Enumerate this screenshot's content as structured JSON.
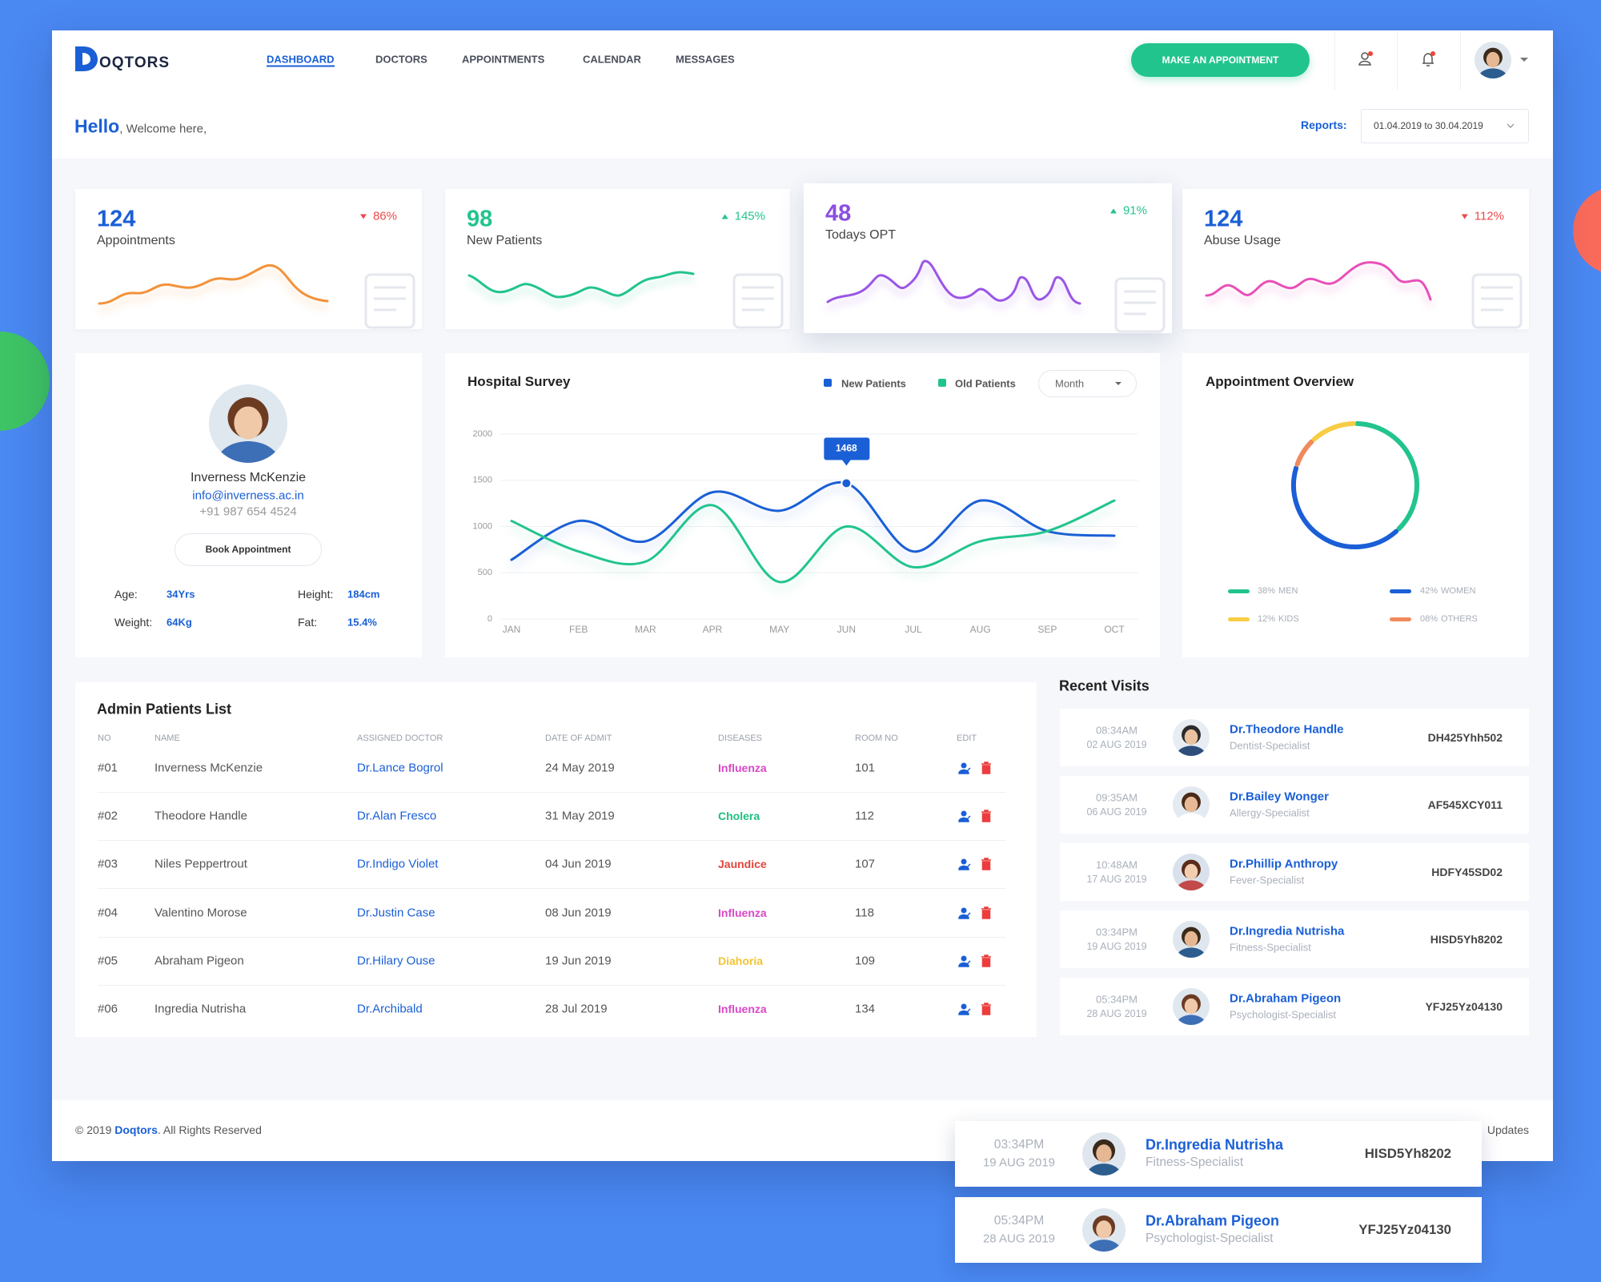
{
  "header": {
    "logo": "OQTORS",
    "nav": [
      "DASHBOARD",
      "DOCTORS",
      "APPOINTMENTS",
      "CALENDAR",
      "MESSAGES"
    ],
    "active_nav": 0,
    "button": "MAKE AN APPOINTMENT"
  },
  "greeting": {
    "hello": "Hello",
    "welcome": ", Welcome here,",
    "reports_label": "Reports:",
    "reports_range": "01.04.2019 to 30.04.2019"
  },
  "stats": [
    {
      "value": 124,
      "label": "Appointments",
      "change": "86%",
      "trend": "down",
      "color": "#1a5fd6",
      "line_color": "#f3923a"
    },
    {
      "value": 98,
      "label": "New Patients",
      "change": "145%",
      "trend": "up",
      "color": "#22c48e",
      "line_color": "#22c48e"
    },
    {
      "value": 48,
      "label": "Todays OPT",
      "change": "91%",
      "trend": "up",
      "color": "#8a4fe0",
      "line_color": "#9b55e6"
    },
    {
      "value": 124,
      "label": "Abuse Usage",
      "change": "112%",
      "trend": "down",
      "color": "#1a5fd6",
      "line_color": "#e84fb8"
    }
  ],
  "profile": {
    "name": "Inverness McKenzie",
    "email": "info@inverness.ac.in",
    "phone": "+91 987 654 4524",
    "button": "Book Appointment",
    "details": [
      {
        "label": "Age:",
        "value": "34Yrs"
      },
      {
        "label": "Height:",
        "value": "184cm"
      },
      {
        "label": "Weight:",
        "value": "64Kg"
      },
      {
        "label": "Fat:",
        "value": "15.4%"
      }
    ]
  },
  "chart_data": [
    {
      "type": "line",
      "title": "Hospital Survey",
      "control": "Month",
      "categories": [
        "JAN",
        "FEB",
        "MAR",
        "APR",
        "MAY",
        "JUN",
        "JUL",
        "AUG",
        "SEP",
        "OCT"
      ],
      "series": [
        {
          "name": "New Patients",
          "color": "#1a5fd6",
          "values": [
            640,
            1060,
            840,
            1370,
            1170,
            1468,
            730,
            1280,
            950,
            900
          ]
        },
        {
          "name": "Old Patients",
          "color": "#22c48e",
          "values": [
            1060,
            730,
            620,
            1230,
            400,
            1000,
            560,
            840,
            950,
            1280
          ]
        }
      ],
      "ylim": [
        0,
        2000
      ],
      "yticks": [
        0,
        500,
        1000,
        1500,
        2000
      ],
      "grid": true,
      "highlight": {
        "series": 0,
        "index": 5
      }
    },
    {
      "type": "pie",
      "title": "Appointment Overview",
      "donut": true,
      "categories": [
        "MEN",
        "WOMEN",
        "KIDS",
        "OTHERS"
      ],
      "values": [
        38,
        42,
        12,
        8
      ],
      "value_labels": [
        "38%",
        "42%",
        "12%",
        "08%"
      ],
      "colors": [
        "#22c48e",
        "#1a5fd6",
        "#f7cd45",
        "#f08a5d"
      ]
    }
  ],
  "patients": {
    "title": "Admin Patients List",
    "columns": [
      "NO",
      "NAME",
      "ASSIGNED DOCTOR",
      "DATE OF ADMIT",
      "DISEASES",
      "ROOM NO",
      "EDIT"
    ],
    "rows": [
      {
        "no": "#01",
        "name": "Inverness McKenzie",
        "doctor": "Dr.Lance Bogrol",
        "date": "24 May 2019",
        "disease": "Influenza",
        "disease_color": "#d848c9",
        "room": 101
      },
      {
        "no": "#02",
        "name": "Theodore Handle",
        "doctor": "Dr.Alan Fresco",
        "date": "31 May 2019",
        "disease": "Cholera",
        "disease_color": "#1fbf7e",
        "room": 112
      },
      {
        "no": "#03",
        "name": "Niles Peppertrout",
        "doctor": "Dr.Indigo Violet",
        "date": "04 Jun 2019",
        "disease": "Jaundice",
        "disease_color": "#e2453b",
        "room": 107
      },
      {
        "no": "#04",
        "name": "Valentino Morose",
        "doctor": "Dr.Justin Case",
        "date": "08 Jun 2019",
        "disease": "Influenza",
        "disease_color": "#d848c9",
        "room": 118
      },
      {
        "no": "#05",
        "name": "Abraham Pigeon",
        "doctor": "Dr.Hilary Ouse",
        "date": "19 Jun 2019",
        "disease": "Diahoria",
        "disease_color": "#f2c433",
        "room": 109
      },
      {
        "no": "#06",
        "name": "Ingredia Nutrisha",
        "doctor": "Dr.Archibald",
        "date": "28 Jul 2019",
        "disease": "Influenza",
        "disease_color": "#d848c9",
        "room": 134
      }
    ]
  },
  "recent_visits": {
    "title": "Recent Visits",
    "items": [
      {
        "time": "08:34AM",
        "date": "02 AUG 2019",
        "doctor": "Dr.Theodore Handle",
        "specialty": "Dentist-Specialist",
        "code": "DH425Yhh502"
      },
      {
        "time": "09:35AM",
        "date": "06 AUG 2019",
        "doctor": "Dr.Bailey Wonger",
        "specialty": "Allergy-Specialist",
        "code": "AF545XCY011"
      },
      {
        "time": "10:48AM",
        "date": "17 AUG 2019",
        "doctor": "Dr.Phillip Anthropy",
        "specialty": "Fever-Specialist",
        "code": "HDFY45SD02"
      },
      {
        "time": "03:34PM",
        "date": "19 AUG 2019",
        "doctor": "Dr.Ingredia Nutrisha",
        "specialty": "Fitness-Specialist",
        "code": "HISD5Yh8202"
      },
      {
        "time": "05:34PM",
        "date": "28 AUG 2019",
        "doctor": "Dr.Abraham Pigeon",
        "specialty": "Psychologist-Specialist",
        "code": "YFJ25Yz04130"
      }
    ]
  },
  "footer": {
    "copyright": "© 2019 ",
    "brand": "Doqtors",
    "rights": ". All Rights Reserved",
    "updates": "Updates"
  },
  "floating_visits": [
    {
      "time": "03:34PM",
      "date": "19 AUG 2019",
      "doctor": "Dr.Ingredia Nutrisha",
      "specialty": "Fitness-Specialist",
      "code": "HISD5Yh8202"
    },
    {
      "time": "05:34PM",
      "date": "28 AUG 2019",
      "doctor": "Dr.Abraham Pigeon",
      "specialty": "Psychologist-Specialist",
      "code": "YFJ25Yz04130"
    }
  ]
}
